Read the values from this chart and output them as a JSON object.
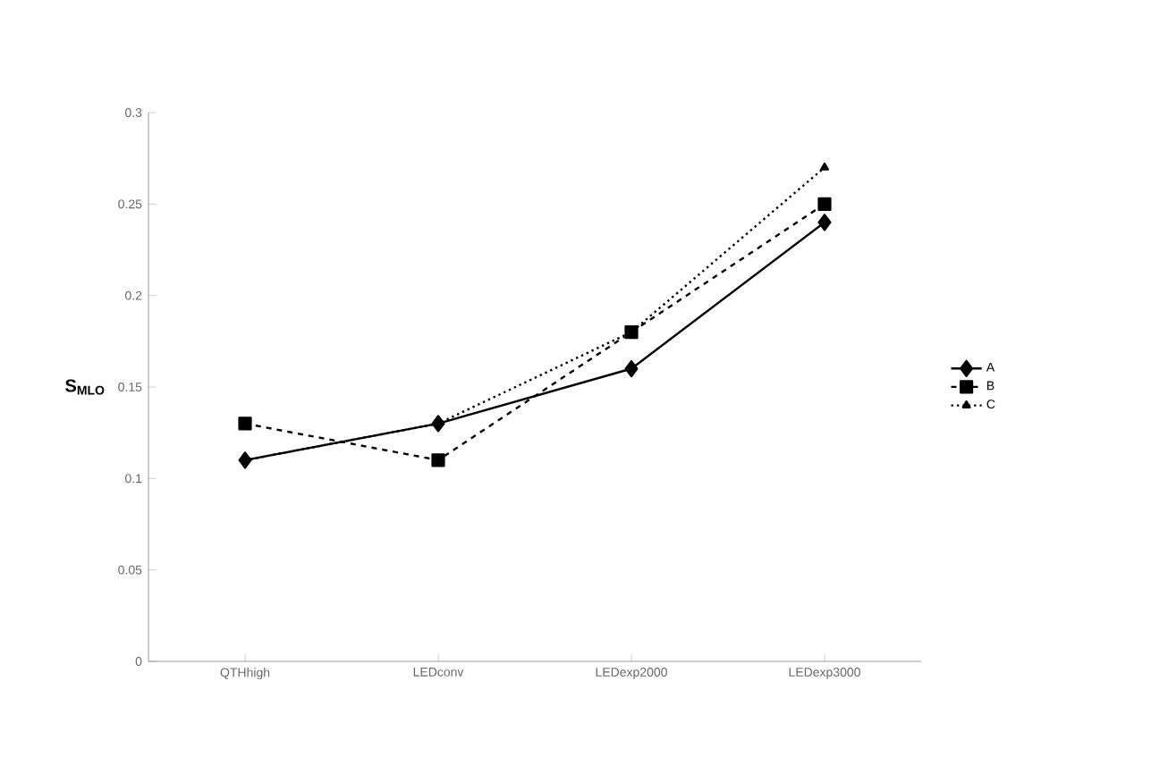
{
  "chart_data": {
    "type": "line",
    "ylabel": "S$_{MLO}$",
    "categories": [
      "QTHhigh",
      "LEDconv",
      "LEDexp2000",
      "LEDexp3000"
    ],
    "series": [
      {
        "name": "A",
        "color": "#000000",
        "marker": "diamond",
        "line_style": "solid",
        "values": [
          0.11,
          0.13,
          0.16,
          0.24
        ]
      },
      {
        "name": "B",
        "color": "#000000",
        "marker": "square",
        "line_style": "dashed",
        "values": [
          0.13,
          0.11,
          0.18,
          0.25
        ]
      },
      {
        "name": "C",
        "color": "#000000",
        "marker": "triangle",
        "line_style": "dotted",
        "values": [
          0.11,
          0.13,
          0.18,
          0.27
        ]
      }
    ],
    "ylim": [
      0,
      0.3
    ],
    "yticks": [
      0,
      0.05,
      0.1,
      0.15,
      0.2,
      0.25,
      0.3
    ],
    "grid": false,
    "legend": "right"
  }
}
